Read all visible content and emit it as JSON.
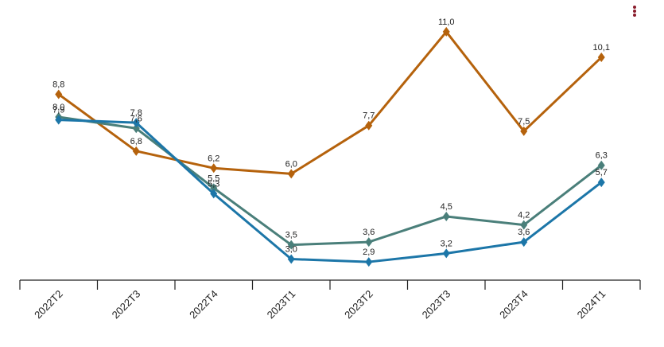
{
  "menu": {
    "icon": "more-vertical-icon",
    "color": "#8a1c2c"
  },
  "chart_data": {
    "type": "line",
    "categories": [
      "2022T2",
      "2022T3",
      "2022T4",
      "2023T1",
      "2023T2",
      "2023T3",
      "2023T4",
      "2024T1"
    ],
    "ylim": [
      0,
      12
    ],
    "grid": false,
    "series": [
      {
        "color": "#b5620c",
        "values": [
          8.8,
          6.8,
          6.2,
          6.0,
          7.7,
          11.0,
          7.5,
          10.1
        ],
        "labels": [
          "8,8",
          "6,8",
          "6,2",
          "6,0",
          "7,7",
          "11,0",
          "7,5",
          "10,1"
        ]
      },
      {
        "color": "#4a7f7a",
        "values": [
          8.0,
          7.6,
          5.5,
          3.5,
          3.6,
          4.5,
          4.2,
          6.3
        ],
        "labels": [
          "8,0",
          "7,6",
          "5,5",
          "3,5",
          "3,6",
          "4,5",
          "4,2",
          "6,3"
        ]
      },
      {
        "color": "#1c76a8",
        "values": [
          7.9,
          7.8,
          5.3,
          3.0,
          2.9,
          3.2,
          3.6,
          5.7
        ],
        "labels": [
          "7,9",
          "7,8",
          "5,3",
          "3,0",
          "2,9",
          "3,2",
          "3,6",
          "5,7"
        ]
      }
    ]
  }
}
